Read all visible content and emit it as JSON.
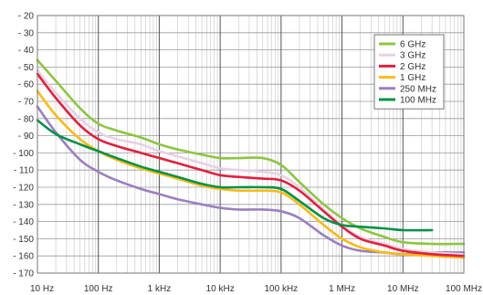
{
  "chart_data": {
    "type": "line",
    "title": "",
    "xlabel": "",
    "ylabel": "",
    "x_scale": "log",
    "xlim": [
      10,
      100000000
    ],
    "ylim": [
      -170,
      -20
    ],
    "grid": true,
    "legend_position": "top-right",
    "x_ticks": [
      {
        "value": 10,
        "label": "10 Hz"
      },
      {
        "value": 100,
        "label": "100 Hz"
      },
      {
        "value": 1000,
        "label": "1 kHz"
      },
      {
        "value": 10000,
        "label": "10 kHz"
      },
      {
        "value": 100000,
        "label": "100 kHz"
      },
      {
        "value": 1000000,
        "label": "1 MHz"
      },
      {
        "value": 10000000,
        "label": "10 MHz"
      },
      {
        "value": 100000000,
        "label": "100 MHz"
      }
    ],
    "y_ticks": [
      {
        "value": -20,
        "label": "- 20"
      },
      {
        "value": -30,
        "label": "- 30"
      },
      {
        "value": -40,
        "label": "- 40"
      },
      {
        "value": -50,
        "label": "- 50"
      },
      {
        "value": -60,
        "label": "- 60"
      },
      {
        "value": -70,
        "label": "- 70"
      },
      {
        "value": -80,
        "label": "- 80"
      },
      {
        "value": -90,
        "label": "- 90"
      },
      {
        "value": -100,
        "label": "- 100"
      },
      {
        "value": -110,
        "label": "- 110"
      },
      {
        "value": -120,
        "label": "- 120"
      },
      {
        "value": -130,
        "label": "- 130"
      },
      {
        "value": -140,
        "label": "- 140"
      },
      {
        "value": -150,
        "label": "- 150"
      },
      {
        "value": -160,
        "label": "- 160"
      },
      {
        "value": -170,
        "label": "- 170"
      }
    ],
    "series": [
      {
        "name": "6 GHz",
        "color": "#8cc63f",
        "x": [
          10,
          20,
          50,
          100,
          200,
          500,
          1000,
          2000,
          5000,
          10000,
          20000,
          50000,
          100000,
          200000,
          500000,
          1000000,
          2000000,
          5000000,
          10000000,
          30000000,
          100000000
        ],
        "y": [
          -46,
          -58,
          -74,
          -83,
          -87,
          -91,
          -95,
          -98,
          -101,
          -103,
          -103,
          -103,
          -107,
          -117,
          -130,
          -138,
          -144,
          -149,
          -152,
          -153,
          -153
        ]
      },
      {
        "name": "3 GHz",
        "color": "#e6d2e4",
        "x": [
          10,
          20,
          50,
          100,
          200,
          500,
          1000,
          2000,
          5000,
          10000,
          20000,
          50000,
          100000,
          200000,
          500000,
          1000000,
          2000000,
          5000000,
          10000000,
          30000000,
          100000000
        ],
        "y": [
          -52,
          -65,
          -80,
          -88,
          -92,
          -95,
          -99,
          -102,
          -106,
          -109,
          -110,
          -111,
          -113,
          -120,
          -133,
          -142,
          -149,
          -153,
          -156,
          -158,
          -159
        ]
      },
      {
        "name": "2 GHz",
        "color": "#e31e3c",
        "x": [
          10,
          20,
          50,
          100,
          200,
          500,
          1000,
          2000,
          5000,
          10000,
          20000,
          50000,
          100000,
          200000,
          500000,
          1000000,
          2000000,
          5000000,
          10000000,
          30000000,
          100000000
        ],
        "y": [
          -54,
          -68,
          -84,
          -92,
          -96,
          -100,
          -103,
          -106,
          -110,
          -113,
          -114,
          -115,
          -116,
          -122,
          -134,
          -143,
          -150,
          -154,
          -157,
          -159,
          -160
        ]
      },
      {
        "name": "1 GHz",
        "color": "#fdb913",
        "x": [
          10,
          20,
          50,
          100,
          200,
          500,
          1000,
          2000,
          5000,
          10000,
          20000,
          50000,
          100000,
          200000,
          500000,
          1000000,
          2000000,
          5000000,
          10000000,
          30000000,
          100000000
        ],
        "y": [
          -64,
          -78,
          -92,
          -99,
          -104,
          -109,
          -112,
          -115,
          -119,
          -121,
          -122,
          -122,
          -123,
          -130,
          -142,
          -150,
          -155,
          -158,
          -159,
          -160,
          -161
        ]
      },
      {
        "name": "250 MHz",
        "color": "#9b7fc0",
        "x": [
          10,
          20,
          50,
          100,
          200,
          500,
          1000,
          2000,
          5000,
          10000,
          20000,
          50000,
          100000,
          200000,
          500000,
          1000000,
          2000000,
          5000000,
          10000000,
          30000000,
          100000000
        ],
        "y": [
          -73,
          -88,
          -104,
          -111,
          -116,
          -121,
          -124,
          -127,
          -130,
          -132,
          -133,
          -133,
          -134,
          -138,
          -148,
          -154,
          -157,
          -158,
          -159,
          -158,
          -158
        ]
      },
      {
        "name": "100 MHz",
        "color": "#009245",
        "x": [
          10,
          20,
          50,
          100,
          200,
          500,
          1000,
          2000,
          5000,
          10000,
          20000,
          50000,
          100000,
          200000,
          500000,
          1000000,
          2000000,
          5000000,
          10000000,
          30000000
        ],
        "y": [
          -81,
          -89,
          -95,
          -99,
          -103,
          -108,
          -111,
          -114,
          -118,
          -120,
          -120,
          -120,
          -121,
          -128,
          -138,
          -142,
          -143,
          -144,
          -145,
          -145
        ]
      }
    ]
  }
}
